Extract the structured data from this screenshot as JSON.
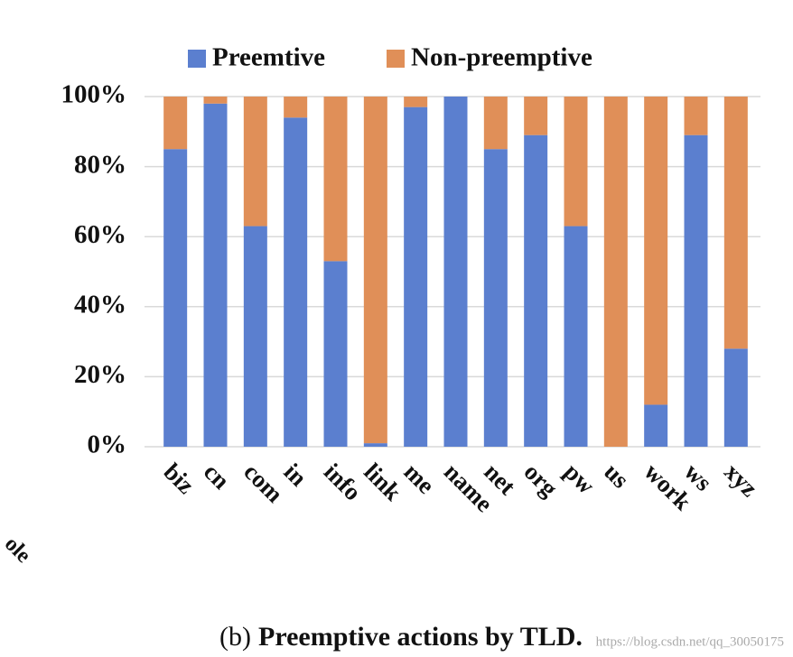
{
  "chart_data": {
    "type": "stacked_bar",
    "caption_label": "(b)",
    "title": "Preemptive actions by TLD.",
    "side_text": "ole",
    "watermark": "https://blog.csdn.net/qq_30050175",
    "categories": [
      "biz",
      "cn",
      "com",
      "in",
      "info",
      "link",
      "me",
      "name",
      "net",
      "org",
      "pw",
      "us",
      "work",
      "ws",
      "xyz"
    ],
    "series": [
      {
        "name": "Preemtive",
        "color": "#5b7fcf",
        "values": [
          85,
          98,
          63,
          94,
          53,
          1,
          97,
          100,
          85,
          89,
          63,
          0,
          12,
          89,
          28
        ]
      },
      {
        "name": "Non-preemptive",
        "color": "#e08f58",
        "values": [
          15,
          2,
          37,
          6,
          47,
          99,
          3,
          0,
          15,
          11,
          37,
          100,
          88,
          11,
          72
        ]
      }
    ],
    "ylim": [
      0,
      100
    ],
    "yticks": [
      {
        "value": 0,
        "label": "0%"
      },
      {
        "value": 20,
        "label": "20%"
      },
      {
        "value": 40,
        "label": "40%"
      },
      {
        "value": 60,
        "label": "60%"
      },
      {
        "value": 80,
        "label": "80%"
      },
      {
        "value": 100,
        "label": "100%"
      }
    ],
    "grid": true,
    "legend": "top"
  }
}
